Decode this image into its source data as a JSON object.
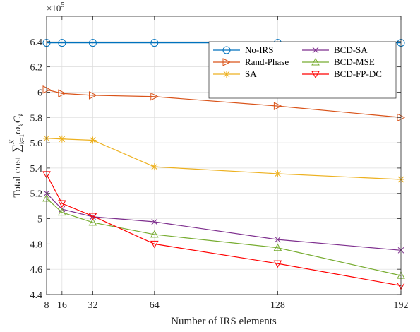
{
  "chart_data": {
    "type": "line",
    "xlabel": "Number of IRS elements",
    "ylabel": "Total cost",
    "ylabel_math": "∑",
    "ylabel_sub": "k=1",
    "ylabel_sup": "K",
    "ylabel_terms": [
      {
        "base": "ω",
        "sub": "k"
      },
      {
        "base": "C",
        "sub": "k"
      }
    ],
    "y_exponent_prefix": "×10",
    "y_exponent_power": "5",
    "xticks": [
      8,
      16,
      32,
      64,
      128,
      192
    ],
    "yticks": [
      4.4,
      4.6,
      4.8,
      5,
      5.2,
      5.4,
      5.6,
      5.8,
      6,
      6.2,
      6.4
    ],
    "ytick_labels": [
      "4.4",
      "4.6",
      "4.8",
      "5",
      "5.2",
      "5.4",
      "5.6",
      "5.8",
      "6",
      "6.2",
      "6.4"
    ],
    "xlim": [
      8,
      192
    ],
    "ylim": [
      4.4,
      6.6
    ],
    "grid": true,
    "legend_position": "top-right",
    "x": [
      8,
      16,
      32,
      64,
      128,
      192
    ],
    "series": [
      {
        "name": "No-IRS",
        "color": "#0072BD",
        "marker": "circle",
        "values": [
          6.39,
          6.39,
          6.39,
          6.39,
          6.39,
          6.39
        ]
      },
      {
        "name": "Rand-Phase",
        "color": "#D95319",
        "marker": "triangle-right",
        "values": [
          6.02,
          5.99,
          5.975,
          5.965,
          5.89,
          5.8
        ]
      },
      {
        "name": "SA",
        "color": "#EDB120",
        "marker": "asterisk",
        "values": [
          5.635,
          5.63,
          5.62,
          5.41,
          5.355,
          5.31
        ]
      },
      {
        "name": "BCD-SA",
        "color": "#7E2F8E",
        "marker": "x",
        "values": [
          5.2,
          5.075,
          5.015,
          4.975,
          4.835,
          4.75
        ]
      },
      {
        "name": "BCD-MSE",
        "color": "#77AC30",
        "marker": "triangle-up",
        "values": [
          5.16,
          5.05,
          4.97,
          4.875,
          4.77,
          4.55
        ]
      },
      {
        "name": "BCD-FP-DC",
        "color": "#FF0000",
        "marker": "triangle-down",
        "values": [
          5.35,
          5.12,
          5.02,
          4.8,
          4.645,
          4.47
        ]
      }
    ]
  }
}
